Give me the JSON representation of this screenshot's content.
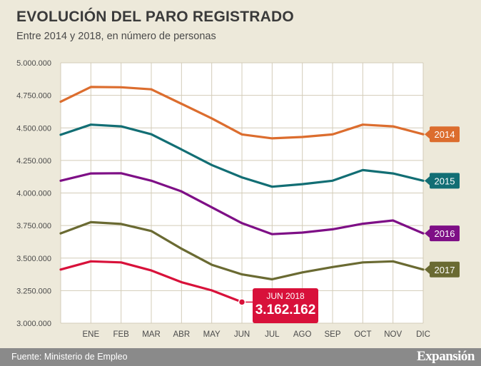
{
  "header": {
    "title": "EVOLUCIÓN DEL PARO REGISTRADO",
    "subtitle": "Entre 2014 y 2018, en número de personas"
  },
  "footer": {
    "source": "Fuente: Ministerio de Empleo",
    "brand": "Expansión"
  },
  "callout": {
    "label": "JUN 2018",
    "value": "3.162.162"
  },
  "chart_data": {
    "type": "line",
    "categories": [
      "",
      "ENE",
      "FEB",
      "MAR",
      "ABR",
      "MAY",
      "JUN",
      "JUL",
      "AGO",
      "SEP",
      "OCT",
      "NOV",
      "DIC"
    ],
    "ylim": [
      3000000,
      5000000
    ],
    "yticks": [
      3000000,
      3250000,
      3500000,
      3750000,
      4000000,
      4250000,
      4500000,
      4750000,
      5000000
    ],
    "ytick_labels": [
      "3.000.000",
      "3.250.000",
      "3.500.000",
      "3.750.000",
      "4.000.000",
      "4.250.000",
      "4.500.000",
      "4.750.000",
      "5.000.000"
    ],
    "grid": true,
    "legend": "labels at right end of each line",
    "series": [
      {
        "name": "2014",
        "color": "#dc6d2e",
        "values": [
          4701000,
          4814000,
          4812000,
          4796000,
          4685000,
          4573000,
          4450000,
          4420000,
          4430000,
          4450000,
          4525000,
          4512000,
          4451000
        ]
      },
      {
        "name": "2015",
        "color": "#126e74",
        "values": [
          4447000,
          4525000,
          4512000,
          4451000,
          4334000,
          4215000,
          4120000,
          4048000,
          4068000,
          4094000,
          4176000,
          4150000,
          4094000
        ]
      },
      {
        "name": "2016",
        "color": "#7e0f86",
        "values": [
          4094000,
          4150000,
          4152000,
          4094000,
          4012000,
          3890000,
          3768000,
          3684000,
          3696000,
          3721000,
          3764000,
          3789000,
          3690000
        ]
      },
      {
        "name": "2017",
        "color": "#6a6a32",
        "values": [
          3690000,
          3776000,
          3762000,
          3708000,
          3572000,
          3449000,
          3375000,
          3337000,
          3390000,
          3431000,
          3467000,
          3475000,
          3412000
        ]
      },
      {
        "name": "",
        "color": "#d8113a",
        "values": [
          3412000,
          3475000,
          3467000,
          3405000,
          3315000,
          3252000,
          3162162,
          null,
          null,
          null,
          null,
          null,
          null
        ]
      }
    ]
  }
}
